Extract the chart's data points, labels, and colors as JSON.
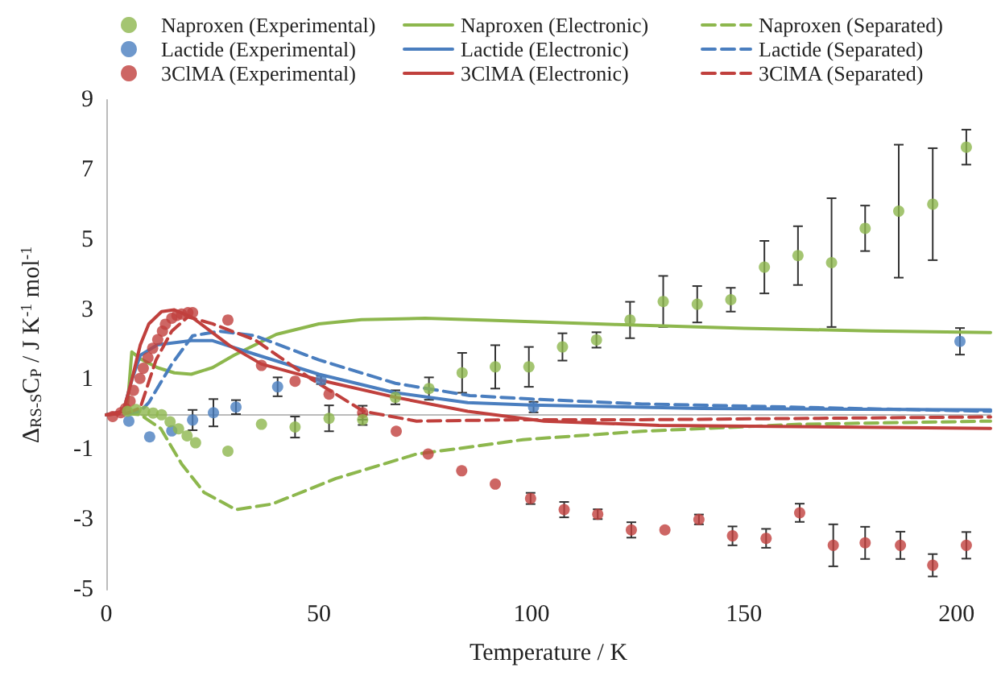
{
  "chart_data": {
    "type": "scatter",
    "xlabel": "Temperature / K",
    "ylabel": "Δ$_{RS-S}$C$_{P}$ / J K$^{-1}$ mol$^{-1}$",
    "xlim": [
      0,
      208
    ],
    "xticks": [
      0,
      50,
      100,
      150,
      200
    ],
    "ylim": [
      -5,
      9
    ],
    "yticks": [
      -5,
      -3,
      -1,
      1,
      3,
      5,
      7,
      9
    ],
    "grid": false,
    "legend": "top",
    "series": [
      {
        "name": "Naproxen (Experimental)",
        "marker": "circle",
        "color": "#8db74d",
        "x": [
          5,
          7,
          9,
          11,
          13,
          15,
          17,
          19,
          21,
          28.6,
          36.5,
          44.4,
          52.4,
          60.3,
          68,
          75.9,
          83.7,
          91.5,
          99.4,
          107.3,
          115.3,
          123.2,
          131,
          139,
          146.9,
          154.8,
          162.7,
          170.6,
          178.5,
          186.4,
          194.4,
          202.3
        ],
        "values": [
          0.1,
          0.15,
          0.1,
          0.05,
          0,
          -0.2,
          -0.4,
          -0.6,
          -0.8,
          -1.04,
          -0.27,
          -0.35,
          -0.1,
          -0.14,
          0.5,
          0.75,
          1.2,
          1.37,
          1.37,
          1.94,
          2.14,
          2.71,
          3.24,
          3.16,
          3.29,
          4.22,
          4.55,
          4.35,
          5.33,
          5.82,
          6.02,
          7.65
        ],
        "errors": [
          null,
          null,
          null,
          null,
          null,
          null,
          null,
          null,
          null,
          null,
          null,
          0.3,
          0.37,
          0.15,
          0.2,
          0.32,
          0.57,
          0.62,
          0.57,
          0.39,
          0.22,
          0.52,
          0.73,
          0.52,
          0.34,
          0.75,
          0.84,
          1.84,
          0.65,
          1.9,
          1.6,
          0.5
        ]
      },
      {
        "name": "Naproxen (Electronic)",
        "type": "line",
        "line_style": "solid",
        "color": "#8db74d",
        "x": [
          0,
          3,
          5,
          6,
          8,
          12,
          16,
          20,
          25,
          30,
          40,
          50,
          60,
          75,
          90,
          120,
          150,
          180,
          208
        ],
        "values": [
          0,
          0.05,
          0.3,
          1.8,
          1.6,
          1.35,
          1.2,
          1.16,
          1.35,
          1.7,
          2.3,
          2.6,
          2.72,
          2.76,
          2.7,
          2.58,
          2.47,
          2.4,
          2.35
        ]
      },
      {
        "name": "Naproxen (Separated)",
        "type": "line",
        "line_style": "dashed",
        "color": "#8db74d",
        "x": [
          0,
          4,
          8,
          12.8,
          17.7,
          23,
          30.5,
          39,
          54,
          73,
          88,
          98,
          126,
          163,
          208
        ],
        "values": [
          0,
          0.05,
          0,
          -0.39,
          -1.4,
          -2.22,
          -2.71,
          -2.55,
          -1.82,
          -1.12,
          -0.88,
          -0.71,
          -0.47,
          -0.27,
          -0.18
        ]
      },
      {
        "name": "Lactide (Experimental)",
        "marker": "circle",
        "color": "#4a7ebf",
        "x": [
          5.3,
          10.2,
          15.4,
          20.3,
          25.2,
          30.5,
          40.3,
          50.5,
          100.5,
          200.8
        ],
        "values": [
          -0.18,
          -0.63,
          -0.46,
          -0.15,
          0.06,
          0.22,
          0.8,
          1.0,
          0.22,
          2.1
        ],
        "errors": [
          null,
          null,
          null,
          0.29,
          0.39,
          0.2,
          0.27,
          0.12,
          0.15,
          0.38
        ]
      },
      {
        "name": "Lactide (Electronic)",
        "type": "line",
        "line_style": "solid",
        "color": "#4a7ebf",
        "x": [
          0,
          4,
          6,
          8,
          12,
          20,
          25,
          35,
          50,
          68,
          85,
          100,
          140,
          208
        ],
        "values": [
          0,
          0.1,
          1.0,
          1.7,
          2.0,
          2.12,
          2.12,
          1.73,
          1.16,
          0.63,
          0.35,
          0.28,
          0.18,
          0.14
        ]
      },
      {
        "name": "Lactide (Separated)",
        "type": "line",
        "line_style": "dashed",
        "color": "#4a7ebf",
        "x": [
          0,
          5,
          8,
          10,
          15.4,
          20.3,
          26.7,
          35,
          50,
          68,
          85.5,
          100,
          126,
          208
        ],
        "values": [
          0,
          0.05,
          0.1,
          0.35,
          1.45,
          2.26,
          2.39,
          2.26,
          1.57,
          0.9,
          0.55,
          0.45,
          0.31,
          0.1
        ]
      },
      {
        "name": "3ClMA (Experimental)",
        "marker": "circle",
        "color": "#c0403d",
        "x": [
          1.5,
          3.4,
          4.5,
          5.6,
          6.4,
          7.9,
          8.7,
          9.8,
          10.9,
          12.1,
          13.2,
          13.9,
          15.4,
          16.6,
          17.7,
          19.2,
          20.3,
          28.6,
          36.5,
          44.4,
          52.4,
          60.3,
          68.2,
          75.7,
          83.6,
          91.5,
          99.8,
          107.7,
          115.6,
          123.5,
          131.4,
          139.4,
          147.3,
          155.2,
          163.1,
          171,
          178.5,
          186.8,
          194.4,
          202.3
        ],
        "values": [
          -0.05,
          0.06,
          0.18,
          0.39,
          0.7,
          1.04,
          1.33,
          1.63,
          1.9,
          2.15,
          2.39,
          2.59,
          2.76,
          2.84,
          2.88,
          2.92,
          2.92,
          2.71,
          1.41,
          0.96,
          0.59,
          0.06,
          -0.47,
          -1.12,
          -1.6,
          -1.98,
          -2.39,
          -2.71,
          -2.84,
          -3.29,
          -3.29,
          -2.99,
          -3.46,
          -3.53,
          -2.8,
          -3.73,
          -3.66,
          -3.73,
          -4.3,
          -3.73
        ],
        "errors": [
          null,
          null,
          null,
          null,
          null,
          null,
          null,
          null,
          null,
          null,
          null,
          null,
          null,
          null,
          null,
          null,
          null,
          null,
          null,
          null,
          null,
          0.2,
          null,
          null,
          null,
          null,
          0.16,
          0.22,
          0.14,
          0.22,
          null,
          0.14,
          0.27,
          0.27,
          0.26,
          0.6,
          0.46,
          0.39,
          0.32,
          0.38
        ]
      },
      {
        "name": "3ClMA (Electronic)",
        "type": "line",
        "line_style": "solid",
        "color": "#c0403d",
        "x": [
          0,
          4,
          6,
          8,
          10,
          13,
          16,
          20,
          29,
          36.5,
          50,
          68,
          85,
          103,
          130,
          208
        ],
        "values": [
          0,
          0.1,
          1.0,
          2.0,
          2.6,
          2.95,
          3.0,
          2.8,
          1.98,
          1.45,
          1.0,
          0.5,
          0.1,
          -0.18,
          -0.3,
          -0.39
        ]
      },
      {
        "name": "3ClMA (Separated)",
        "type": "line",
        "line_style": "dashed",
        "color": "#c0403d",
        "x": [
          0,
          5,
          8,
          11.7,
          15.4,
          19.2,
          25,
          35,
          48,
          60.5,
          73,
          98,
          126,
          208
        ],
        "values": [
          0,
          0.05,
          0.2,
          1.57,
          2.39,
          2.8,
          2.6,
          2.14,
          1.04,
          0.1,
          -0.18,
          -0.14,
          -0.14,
          -0.06
        ]
      }
    ]
  }
}
